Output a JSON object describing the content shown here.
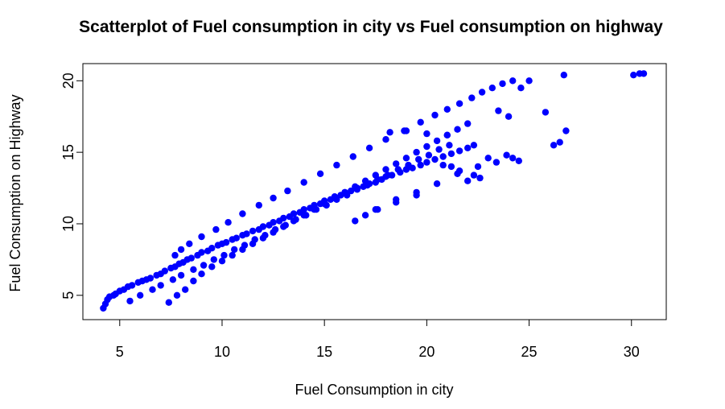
{
  "chart_data": {
    "type": "scatter",
    "title": "Scatterplot of Fuel consumption in city vs Fuel consumption on highway",
    "xlabel": "Fuel Consumption in city",
    "ylabel": "Fuel Consumption on Highway",
    "xlim": [
      3.2,
      31.7
    ],
    "ylim": [
      3.3,
      21.2
    ],
    "xticks": [
      "5",
      "10",
      "15",
      "20",
      "25",
      "30"
    ],
    "yticks": [
      "5",
      "10",
      "15",
      "20"
    ],
    "grid": false,
    "legend": "none",
    "point_color": "#0000ff",
    "series": [
      {
        "x": [
          4.2,
          4.3,
          4.4,
          4.5,
          4.7,
          4.8,
          5.0,
          5.2,
          5.4,
          5.6,
          5.9,
          6.1,
          6.3,
          6.5,
          6.8,
          7.0,
          7.2,
          7.5,
          7.7,
          7.9,
          8.1,
          8.3,
          8.5,
          8.8,
          9.0,
          9.3,
          9.5,
          9.8,
          10.0,
          10.2,
          10.5,
          10.7,
          11.0,
          11.2,
          11.5,
          11.8,
          12.0,
          12.3,
          12.5,
          12.8,
          13.0,
          13.3,
          13.5,
          13.8,
          14.0,
          14.3,
          14.5,
          14.8,
          15.0,
          15.3,
          15.5,
          15.8,
          16.0,
          16.3,
          16.6,
          16.9,
          17.2,
          17.5,
          17.8,
          18.0,
          18.3,
          18.7,
          19.0,
          19.3,
          19.7,
          20.0,
          20.4,
          20.8,
          21.2,
          21.6,
          22.0,
          22.3,
          5.5,
          6.0,
          6.6,
          7.0,
          7.6,
          8.0,
          8.6,
          9.1,
          9.6,
          10.1,
          10.6,
          11.1,
          11.6,
          12.1,
          12.6,
          13.1,
          13.6,
          14.1,
          14.6,
          15.1,
          15.6,
          16.1,
          16.6,
          17.1,
          17.6,
          18.1,
          18.6,
          19.1,
          19.6,
          20.1,
          20.6,
          21.1,
          7.4,
          7.8,
          8.2,
          8.6,
          9.0,
          9.5,
          10.0,
          10.5,
          11.0,
          11.5,
          12.0,
          12.5,
          13.0,
          13.5,
          14.0,
          14.5,
          15.0,
          15.5,
          16.0,
          16.5,
          17.0,
          17.5,
          18.0,
          18.5,
          19.0,
          19.5,
          20.0,
          20.5,
          21.0,
          21.5,
          22.0,
          7.7,
          8.0,
          8.4,
          9.0,
          9.7,
          10.3,
          11.0,
          11.8,
          12.5,
          13.2,
          14.0,
          14.8,
          15.6,
          16.4,
          17.2,
          18.0,
          18.9,
          19.7,
          20.4,
          21.0,
          21.6,
          22.2,
          22.7,
          23.2,
          23.7,
          24.2,
          24.6,
          25.0,
          26.7,
          30.1,
          30.4,
          30.6,
          26.2,
          26.5,
          26.8,
          24.5,
          24.2,
          23.9,
          23.4,
          23.0,
          22.6,
          22.3,
          22.0,
          21.6,
          21.2,
          20.8,
          18.2,
          19.0,
          20.0,
          21.0,
          23.5,
          24.0,
          25.8,
          17.6,
          18.5,
          19.5,
          20.5,
          21.5,
          22.5,
          16.5,
          17.0,
          17.5,
          18.5,
          19.5
        ],
        "y": [
          4.1,
          4.4,
          4.7,
          4.9,
          5.0,
          5.1,
          5.3,
          5.4,
          5.6,
          5.7,
          5.9,
          6.0,
          6.1,
          6.2,
          6.4,
          6.5,
          6.7,
          6.9,
          7.0,
          7.2,
          7.3,
          7.5,
          7.6,
          7.8,
          8.0,
          8.1,
          8.3,
          8.5,
          8.6,
          8.7,
          8.9,
          9.0,
          9.2,
          9.3,
          9.5,
          9.6,
          9.8,
          9.9,
          10.1,
          10.2,
          10.4,
          10.5,
          10.7,
          10.8,
          11.0,
          11.1,
          11.3,
          11.4,
          11.6,
          11.7,
          11.9,
          12.0,
          12.2,
          12.3,
          12.5,
          12.6,
          12.8,
          12.9,
          13.1,
          13.3,
          13.4,
          13.6,
          13.8,
          13.9,
          14.1,
          14.3,
          14.5,
          14.7,
          14.9,
          15.1,
          15.3,
          15.5,
          4.6,
          5.0,
          5.4,
          5.7,
          6.1,
          6.4,
          6.8,
          7.1,
          7.5,
          7.8,
          8.2,
          8.5,
          8.9,
          9.2,
          9.6,
          9.9,
          10.3,
          10.6,
          11.0,
          11.3,
          11.7,
          12.0,
          12.4,
          12.7,
          13.1,
          13.4,
          13.8,
          14.1,
          14.5,
          14.8,
          15.2,
          15.5,
          4.5,
          5.0,
          5.4,
          6.0,
          6.5,
          7.0,
          7.4,
          7.8,
          8.2,
          8.6,
          9.0,
          9.4,
          9.8,
          10.2,
          10.6,
          11.0,
          11.4,
          11.8,
          12.2,
          12.6,
          13.0,
          13.4,
          13.8,
          14.2,
          14.6,
          15.0,
          15.4,
          15.8,
          16.2,
          16.6,
          17.0,
          7.8,
          8.2,
          8.6,
          9.1,
          9.6,
          10.1,
          10.7,
          11.3,
          11.8,
          12.3,
          12.9,
          13.5,
          14.1,
          14.7,
          15.3,
          15.9,
          16.5,
          17.1,
          17.6,
          18.0,
          18.4,
          18.8,
          19.2,
          19.5,
          19.8,
          20.0,
          19.5,
          20.0,
          20.4,
          20.4,
          20.5,
          20.5,
          15.5,
          15.7,
          16.5,
          14.4,
          14.6,
          14.8,
          14.3,
          14.6,
          13.2,
          13.4,
          13.0,
          13.7,
          14.0,
          14.1,
          16.4,
          16.5,
          16.3,
          16.2,
          17.9,
          17.5,
          17.8,
          11.0,
          11.7,
          12.2,
          12.8,
          13.5,
          14.0,
          10.2,
          10.6,
          11.0,
          11.5,
          12.0
        ]
      }
    ]
  }
}
